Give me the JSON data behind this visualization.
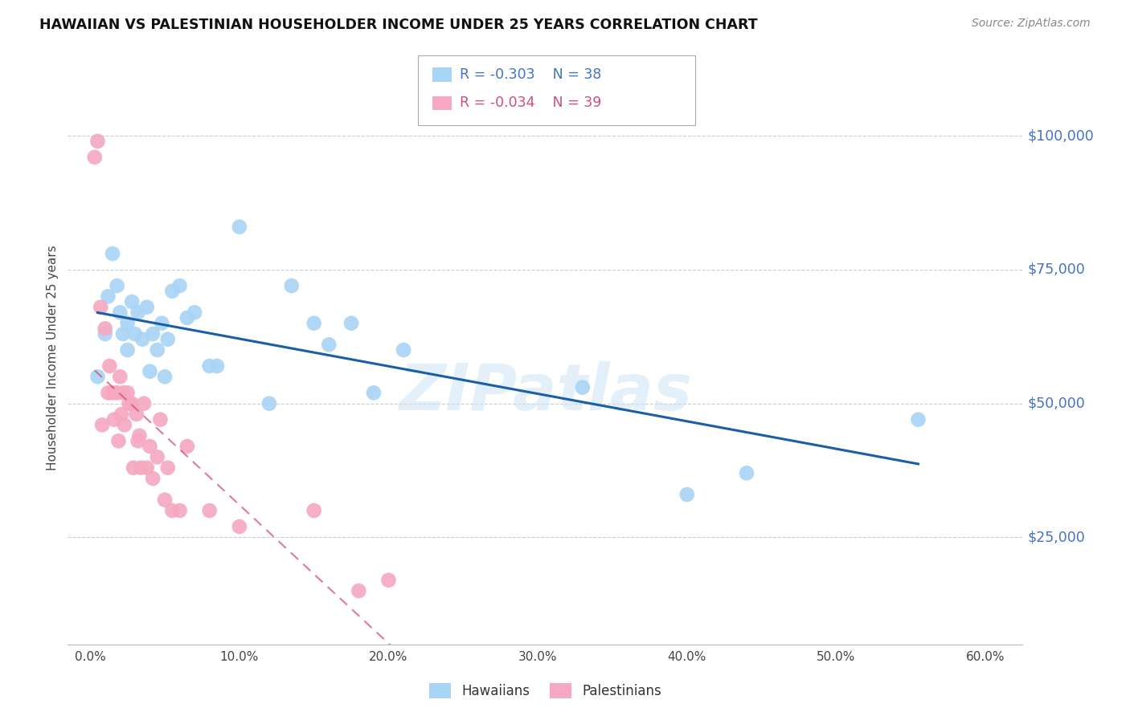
{
  "title": "HAWAIIAN VS PALESTINIAN HOUSEHOLDER INCOME UNDER 25 YEARS CORRELATION CHART",
  "source": "Source: ZipAtlas.com",
  "ylabel": "Householder Income Under 25 years",
  "ytick_labels": [
    "$25,000",
    "$50,000",
    "$75,000",
    "$100,000"
  ],
  "ytick_values": [
    25000,
    50000,
    75000,
    100000
  ],
  "xtick_labels": [
    "0.0%",
    "10.0%",
    "20.0%",
    "30.0%",
    "40.0%",
    "50.0%",
    "60.0%"
  ],
  "xtick_values": [
    0.0,
    0.1,
    0.2,
    0.3,
    0.4,
    0.5,
    0.6
  ],
  "xlim": [
    -0.015,
    0.625
  ],
  "ylim": [
    5000,
    112000
  ],
  "hawaiians_R": -0.303,
  "hawaiians_N": 38,
  "palestinians_R": -0.034,
  "palestinians_N": 39,
  "hawaiians_color": "#A8D4F5",
  "palestinians_color": "#F5A8C0",
  "hawaiians_line_color": "#1A5EA8",
  "palestinians_line_color": "#D05070",
  "watermark_text": "ZIPatlas",
  "hawaiians_x": [
    0.005,
    0.01,
    0.012,
    0.015,
    0.018,
    0.02,
    0.022,
    0.025,
    0.025,
    0.028,
    0.03,
    0.032,
    0.035,
    0.038,
    0.04,
    0.042,
    0.045,
    0.048,
    0.05,
    0.052,
    0.055,
    0.06,
    0.065,
    0.07,
    0.08,
    0.085,
    0.1,
    0.12,
    0.135,
    0.15,
    0.16,
    0.175,
    0.19,
    0.21,
    0.33,
    0.4,
    0.44,
    0.555
  ],
  "hawaiians_y": [
    55000,
    63000,
    70000,
    78000,
    72000,
    67000,
    63000,
    65000,
    60000,
    69000,
    63000,
    67000,
    62000,
    68000,
    56000,
    63000,
    60000,
    65000,
    55000,
    62000,
    71000,
    72000,
    66000,
    67000,
    57000,
    57000,
    83000,
    50000,
    72000,
    65000,
    61000,
    65000,
    52000,
    60000,
    53000,
    33000,
    37000,
    47000
  ],
  "palestinians_x": [
    0.003,
    0.005,
    0.007,
    0.008,
    0.01,
    0.012,
    0.013,
    0.015,
    0.016,
    0.018,
    0.019,
    0.02,
    0.021,
    0.022,
    0.023,
    0.025,
    0.026,
    0.028,
    0.029,
    0.031,
    0.032,
    0.033,
    0.034,
    0.036,
    0.038,
    0.04,
    0.042,
    0.045,
    0.047,
    0.05,
    0.052,
    0.055,
    0.06,
    0.065,
    0.08,
    0.1,
    0.15,
    0.18,
    0.2
  ],
  "palestinians_y": [
    96000,
    99000,
    68000,
    46000,
    64000,
    52000,
    57000,
    52000,
    47000,
    52000,
    43000,
    55000,
    48000,
    52000,
    46000,
    52000,
    50000,
    50000,
    38000,
    48000,
    43000,
    44000,
    38000,
    50000,
    38000,
    42000,
    36000,
    40000,
    47000,
    32000,
    38000,
    30000,
    30000,
    42000,
    30000,
    27000,
    30000,
    15000,
    17000
  ]
}
